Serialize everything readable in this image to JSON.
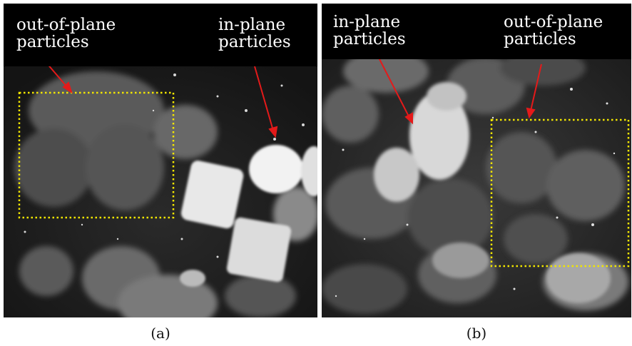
{
  "figure": {
    "panel_a": {
      "label_left_line1": "out-of-plane",
      "label_left_line2": "particles",
      "label_right_line1": "in-plane",
      "label_right_line2": "particles",
      "caption": "(a)"
    },
    "panel_b": {
      "label_left_line1": "in-plane",
      "label_left_line2": "particles",
      "label_right_line1": "out-of-plane",
      "label_right_line2": "particles",
      "caption": "(b)"
    },
    "colors": {
      "annotation_box": "#f2e600",
      "arrow": "#e41a1a",
      "header_background": "#000000",
      "header_text": "#ffffff"
    }
  }
}
